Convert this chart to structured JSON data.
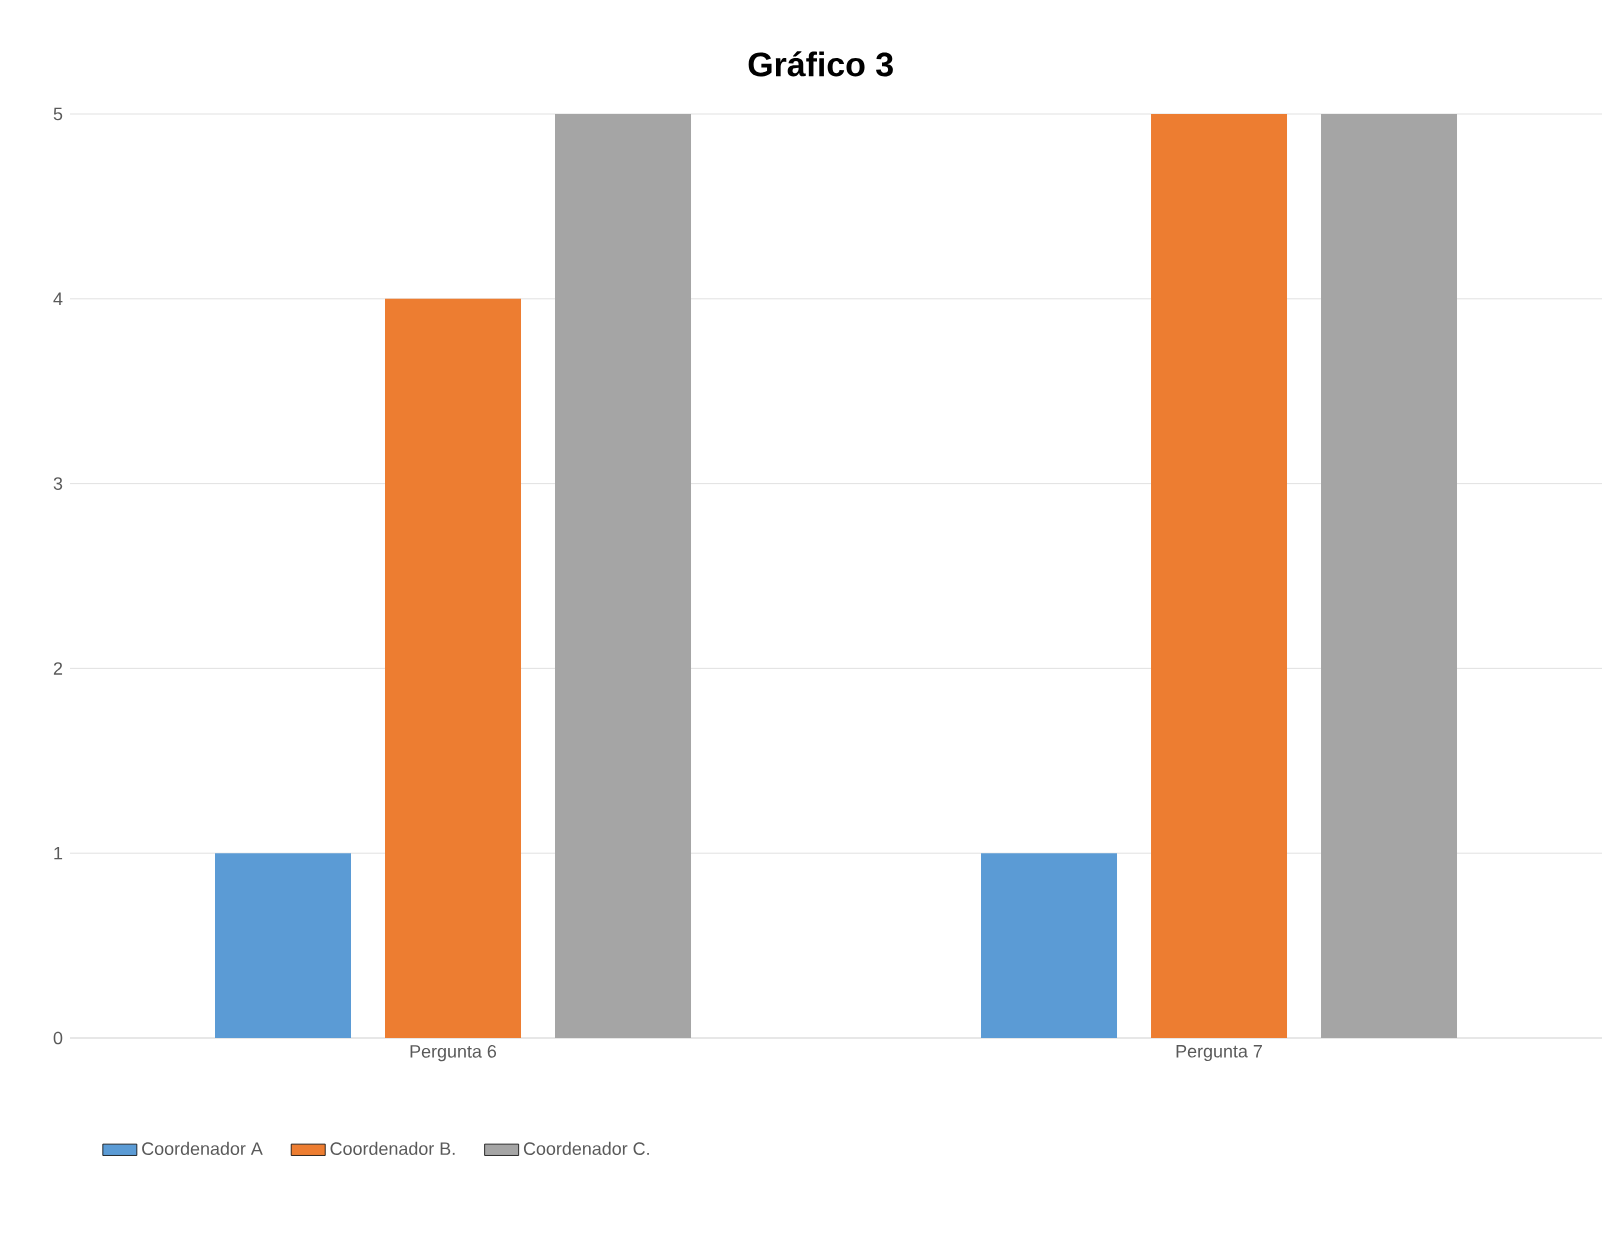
{
  "chart_data": {
    "type": "bar",
    "title": "Gráfico 3",
    "categories": [
      "Pergunta 6",
      "Pergunta 7"
    ],
    "series": [
      {
        "name": "Coordenador A",
        "color": "#5b9bd5",
        "values": [
          1,
          1
        ]
      },
      {
        "name": "Coordenador B.",
        "color": "#ed7d31",
        "values": [
          4,
          5
        ]
      },
      {
        "name": "Coordenador C.",
        "color": "#a5a5a5",
        "values": [
          5,
          5
        ]
      }
    ],
    "ylim": [
      0,
      5
    ],
    "yticks": [
      0,
      1,
      2,
      3,
      4,
      5
    ],
    "grid": "y",
    "legend": "bottom"
  }
}
